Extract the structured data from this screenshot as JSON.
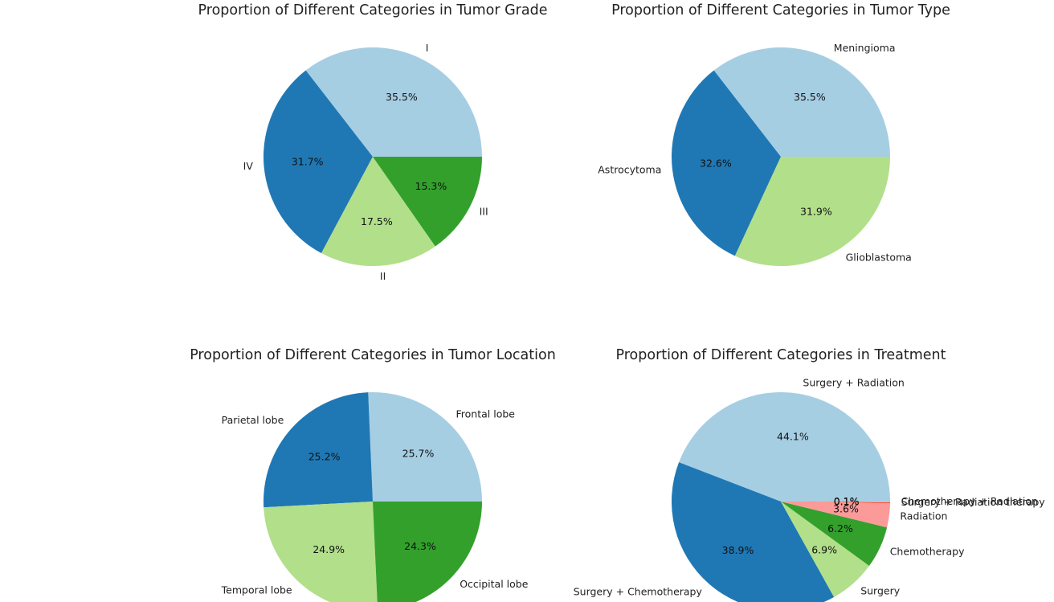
{
  "chart_data": [
    {
      "type": "pie",
      "title": "Proportion of Different Categories in Tumor Grade",
      "labels": [
        "I",
        "IV",
        "II",
        "III"
      ],
      "values": [
        35.5,
        31.7,
        17.5,
        15.3
      ],
      "colors": [
        "#a6cee3",
        "#1f78b4",
        "#b2df8a",
        "#33a02c"
      ],
      "start_angle": 0,
      "direction": "counterclockwise"
    },
    {
      "type": "pie",
      "title": "Proportion of Different Categories in Tumor Type",
      "labels": [
        "Meningioma",
        "Astrocytoma",
        "Glioblastoma"
      ],
      "values": [
        35.5,
        32.6,
        31.9
      ],
      "colors": [
        "#a6cee3",
        "#1f78b4",
        "#b2df8a"
      ],
      "start_angle": 0,
      "direction": "counterclockwise"
    },
    {
      "type": "pie",
      "title": "Proportion of Different Categories in Tumor Location",
      "labels": [
        "Frontal lobe",
        "Parietal lobe",
        "Temporal lobe",
        "Occipital lobe"
      ],
      "values": [
        25.7,
        25.2,
        24.9,
        24.3
      ],
      "colors": [
        "#a6cee3",
        "#1f78b4",
        "#b2df8a",
        "#33a02c"
      ],
      "start_angle": 0,
      "direction": "counterclockwise"
    },
    {
      "type": "pie",
      "title": "Proportion of Different Categories in Treatment",
      "labels": [
        "Surgery + Radiation",
        "Surgery + Chemotherapy",
        "Surgery",
        "Chemotherapy",
        "Radiation",
        "Surgery + Radiation therapy",
        "Chemotherapy + Radiation"
      ],
      "values": [
        44.1,
        38.9,
        6.9,
        6.2,
        3.6,
        0.1,
        0.1
      ],
      "pct_labels": [
        "44.1%",
        "38.9%",
        "6.9%",
        "6.2%",
        "3.6%",
        "0.1%",
        "0.1%"
      ],
      "colors": [
        "#a6cee3",
        "#1f78b4",
        "#b2df8a",
        "#33a02c",
        "#fb9a99",
        "#e31a1c",
        "#fdbf6f"
      ],
      "start_angle": 0,
      "direction": "counterclockwise"
    }
  ]
}
